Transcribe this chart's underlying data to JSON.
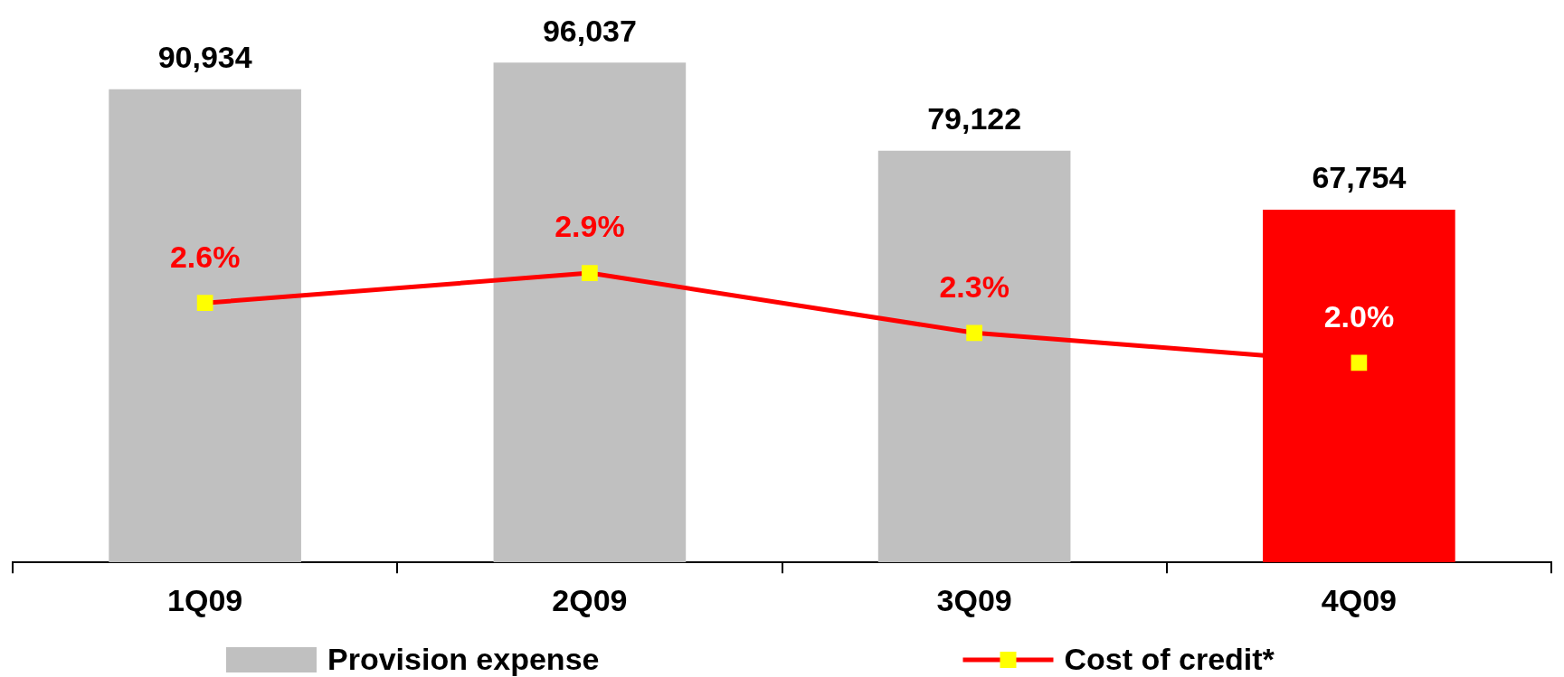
{
  "chart_data": {
    "type": "bar",
    "categories": [
      "1Q09",
      "2Q09",
      "3Q09",
      "4Q09"
    ],
    "series": [
      {
        "name": "Provision expense",
        "color": "#c0c0c0",
        "colors": [
          "#c0c0c0",
          "#c0c0c0",
          "#c0c0c0",
          "#ff0000"
        ],
        "values": [
          90934,
          96037,
          79122,
          67754
        ],
        "value_labels": [
          "90,934",
          "96,037",
          "79,122",
          "67,754"
        ]
      },
      {
        "name": "Cost of credit*",
        "type": "line",
        "axis": "y2",
        "color": "#ff0000",
        "values": [
          2.6,
          2.9,
          2.3,
          2.0
        ],
        "value_labels": [
          "2.6%",
          "2.9%",
          "2.3%",
          "2.0%"
        ]
      }
    ],
    "marker": "square",
    "legend": "bottom",
    "grid": false
  }
}
